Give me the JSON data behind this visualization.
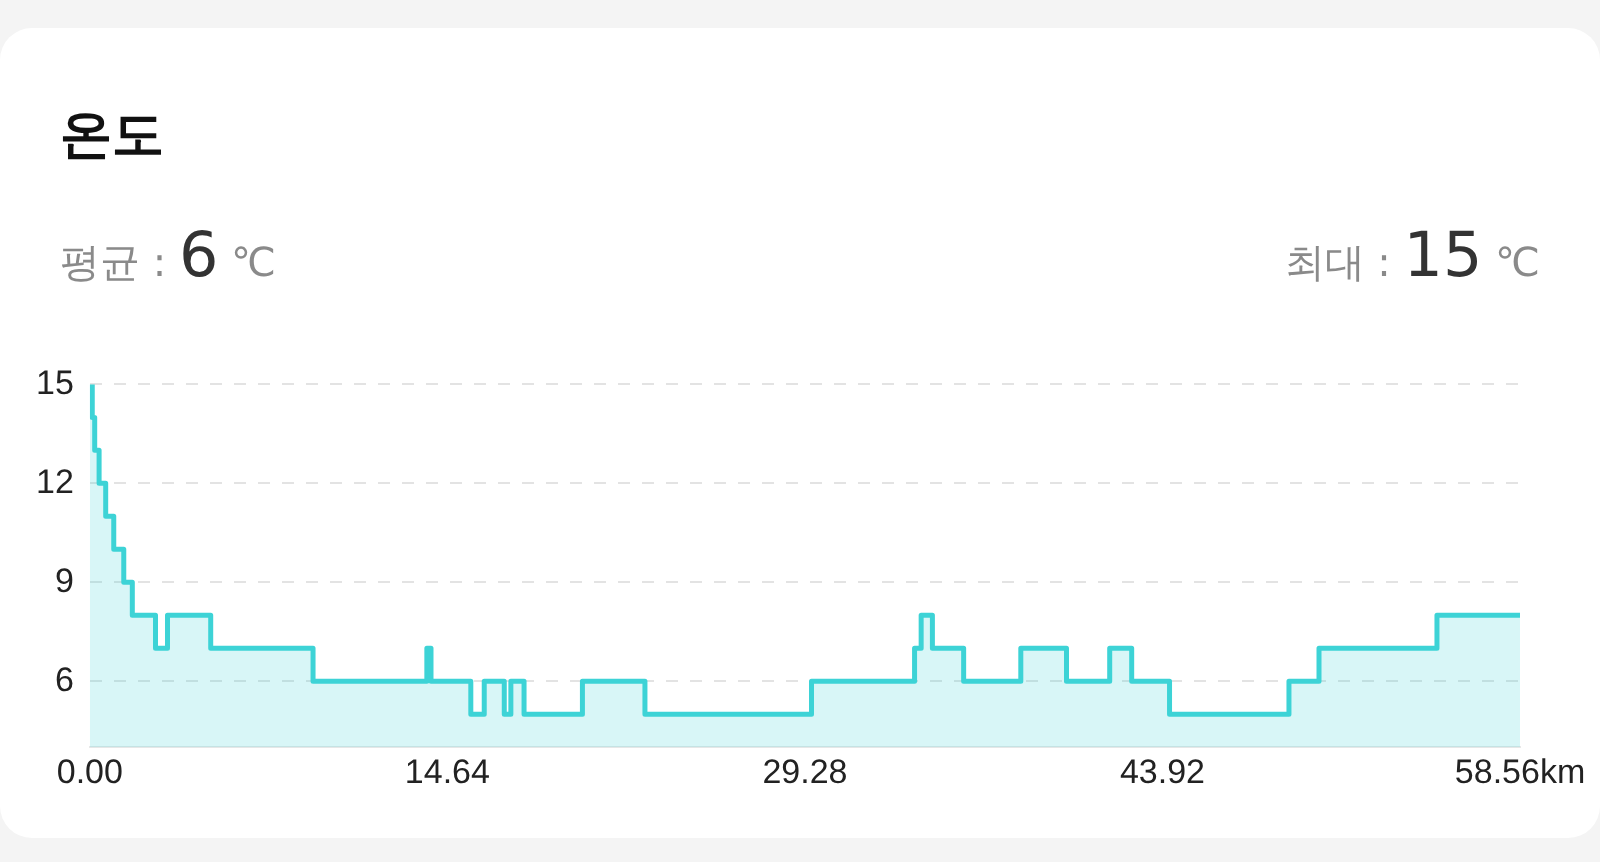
{
  "chart_data": {
    "type": "area",
    "title": "온도",
    "annotations": [
      "평균 : 6 ℃",
      "최대 : 15 ℃"
    ],
    "x": [
      0,
      0.1,
      0.1,
      0.2,
      0.2,
      0.38,
      0.38,
      0.65,
      0.65,
      0.98,
      0.98,
      1.39,
      1.39,
      1.74,
      1.74,
      2.69,
      2.69,
      3.18,
      3.18,
      4.95,
      4.95,
      9.14,
      9.14,
      13.8,
      13.8,
      13.97,
      13.97,
      15.6,
      15.6,
      16.15,
      16.15,
      16.97,
      16.97,
      17.24,
      17.24,
      17.78,
      17.78,
      20.17,
      20.17,
      22.73,
      22.73,
      29.55,
      29.55,
      33.77,
      33.77,
      34.04,
      34.04,
      34.5,
      34.5,
      35.78,
      35.78,
      38.12,
      38.12,
      39.99,
      39.99,
      41.76,
      41.76,
      42.66,
      42.66,
      44.21,
      44.21,
      49.1,
      49.1,
      50.33,
      50.33,
      55.16,
      55.16,
      58.56
    ],
    "series": [
      {
        "color": "#3dd3d6",
        "values": [
          15,
          15,
          14,
          14,
          13,
          13,
          12,
          12,
          11,
          11,
          10,
          10,
          9,
          9,
          8,
          8,
          7,
          7,
          8,
          8,
          7,
          7,
          6,
          6,
          7,
          7,
          6,
          6,
          5,
          5,
          6,
          6,
          5,
          5,
          6,
          6,
          5,
          5,
          6,
          6,
          5,
          5,
          6,
          6,
          7,
          7,
          8,
          8,
          7,
          7,
          6,
          6,
          7,
          7,
          6,
          6,
          7,
          7,
          6,
          6,
          5,
          5,
          6,
          6,
          7,
          7,
          8,
          8
        ]
      }
    ],
    "xlim": [
      0,
      58.56
    ],
    "xticks": [
      {
        "value": 0,
        "label": "0.00"
      },
      14.64,
      29.28,
      43.92,
      {
        "value": 58.56,
        "label": "58.56km"
      }
    ],
    "ylim": [
      4,
      15
    ],
    "yticks": [
      6,
      9,
      12,
      15
    ],
    "grid": "y"
  }
}
